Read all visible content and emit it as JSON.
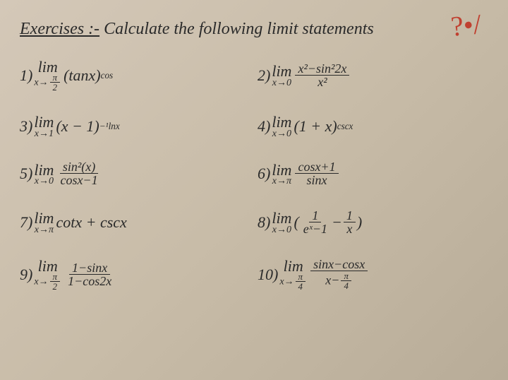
{
  "header": {
    "title_underlined": "Exercises :-",
    "title_rest": "  Calculate  the following limit statements",
    "handwritten_mark": "?•/"
  },
  "problems": {
    "p1": {
      "num": "1)",
      "lim_top": "lim",
      "lim_bottom": "x→π/2",
      "body": "(tanx)",
      "exp": "cos"
    },
    "p2": {
      "num": "2)",
      "lim_top": "lim",
      "lim_bottom": "x→0",
      "frac_n": "x²−sin²2x",
      "frac_d": "x²"
    },
    "p3": {
      "num": "3)",
      "lim_top": "lim",
      "lim_bottom": "x→1",
      "body": "(x − 1)",
      "exp": "−¹lnx"
    },
    "p4": {
      "num": "4)",
      "lim_top": "lim",
      "lim_bottom": "x→0",
      "body": "(1 + x)",
      "exp": "cscx"
    },
    "p5": {
      "num": "5)",
      "lim_top": "lim",
      "lim_bottom": "x→0",
      "frac_n": "sin²(x)",
      "frac_d": "cosx−1"
    },
    "p6": {
      "num": "6)",
      "lim_top": "lim",
      "lim_bottom": "x→π",
      "frac_n": "cosx+1",
      "frac_d": "sinx"
    },
    "p7": {
      "num": "7)",
      "lim_top": "lim",
      "lim_bottom": "x→π",
      "body": "cotx + cscx"
    },
    "p8": {
      "num": "8)",
      "lim_top": "lim",
      "lim_bottom": "x→0",
      "body_open": "(",
      "frac1_n": "1",
      "frac1_d": "eˣ−1",
      "mid": " − ",
      "frac2_n": "1",
      "frac2_d": "x",
      "body_close": ")"
    },
    "p9": {
      "num": "9)",
      "lim_top": "lim",
      "lim_bottom": "x→π/2",
      "frac_n": "1−sinx",
      "frac_d": "1−cos2x"
    },
    "p10": {
      "num": "10)",
      "lim_top": "lim",
      "lim_bottom": "x→π/4",
      "frac_n": "sinx−cosx",
      "frac_d": "x−π/4"
    }
  },
  "style": {
    "background_gradient": [
      "#d4c8b8",
      "#c8bca8",
      "#b8ac98"
    ],
    "text_color": "#2a2a2a",
    "handwritten_color": "#c04030",
    "font_family": "Times New Roman, serif",
    "font_style": "italic",
    "header_fontsize": 24,
    "problem_fontsize": 22,
    "sub_fontsize": 14,
    "frac_fontsize": 18
  }
}
